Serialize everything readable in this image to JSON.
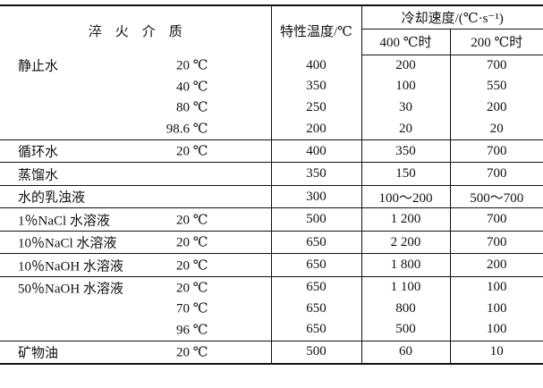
{
  "header": {
    "medium": "淬　火　介　质",
    "char_temp": "特性温度/℃",
    "cooling_rate": "冷却速度/(℃·s⁻¹)",
    "at400": "400 ℃时",
    "at200": "200 ℃时"
  },
  "rows": [
    {
      "name": "静止水",
      "sub": [
        {
          "cond": "20 ℃",
          "temp": "400",
          "r400": "200",
          "r200": "700"
        },
        {
          "cond": "40 ℃",
          "temp": "350",
          "r400": "100",
          "r200": "550"
        },
        {
          "cond": "80 ℃",
          "temp": "250",
          "r400": "30",
          "r200": "200"
        },
        {
          "cond": "98.6 ℃",
          "temp": "200",
          "r400": "20",
          "r200": "20"
        }
      ]
    },
    {
      "name": "循环水",
      "sub": [
        {
          "cond": "20 ℃",
          "temp": "400",
          "r400": "350",
          "r200": "700"
        }
      ]
    },
    {
      "name": "蒸馏水",
      "sub": [
        {
          "cond": "",
          "temp": "350",
          "r400": "150",
          "r200": "700"
        }
      ]
    },
    {
      "name": "水的乳浊液",
      "sub": [
        {
          "cond": "",
          "temp": "300",
          "r400": "100～200",
          "r200": "500～700"
        }
      ]
    },
    {
      "name": "1％NaCl 水溶液",
      "sub": [
        {
          "cond": "20 ℃",
          "temp": "500",
          "r400": "1 200",
          "r200": "700"
        }
      ]
    },
    {
      "name": "10％NaCl 水溶液",
      "sub": [
        {
          "cond": "20 ℃",
          "temp": "650",
          "r400": "2 200",
          "r200": "700"
        }
      ]
    },
    {
      "name": "10％NaOH 水溶液",
      "sub": [
        {
          "cond": "20 ℃",
          "temp": "650",
          "r400": "1 800",
          "r200": "200"
        }
      ]
    },
    {
      "name": "50％NaOH 水溶液",
      "sub": [
        {
          "cond": "20 ℃",
          "temp": "650",
          "r400": "1 100",
          "r200": "100"
        },
        {
          "cond": "70 ℃",
          "temp": "650",
          "r400": "800",
          "r200": "100"
        },
        {
          "cond": "96 ℃",
          "temp": "650",
          "r400": "500",
          "r200": "100"
        }
      ]
    },
    {
      "name": "矿物油",
      "sub": [
        {
          "cond": "20 ℃",
          "temp": "500",
          "r400": "60",
          "r200": "10"
        }
      ]
    }
  ]
}
